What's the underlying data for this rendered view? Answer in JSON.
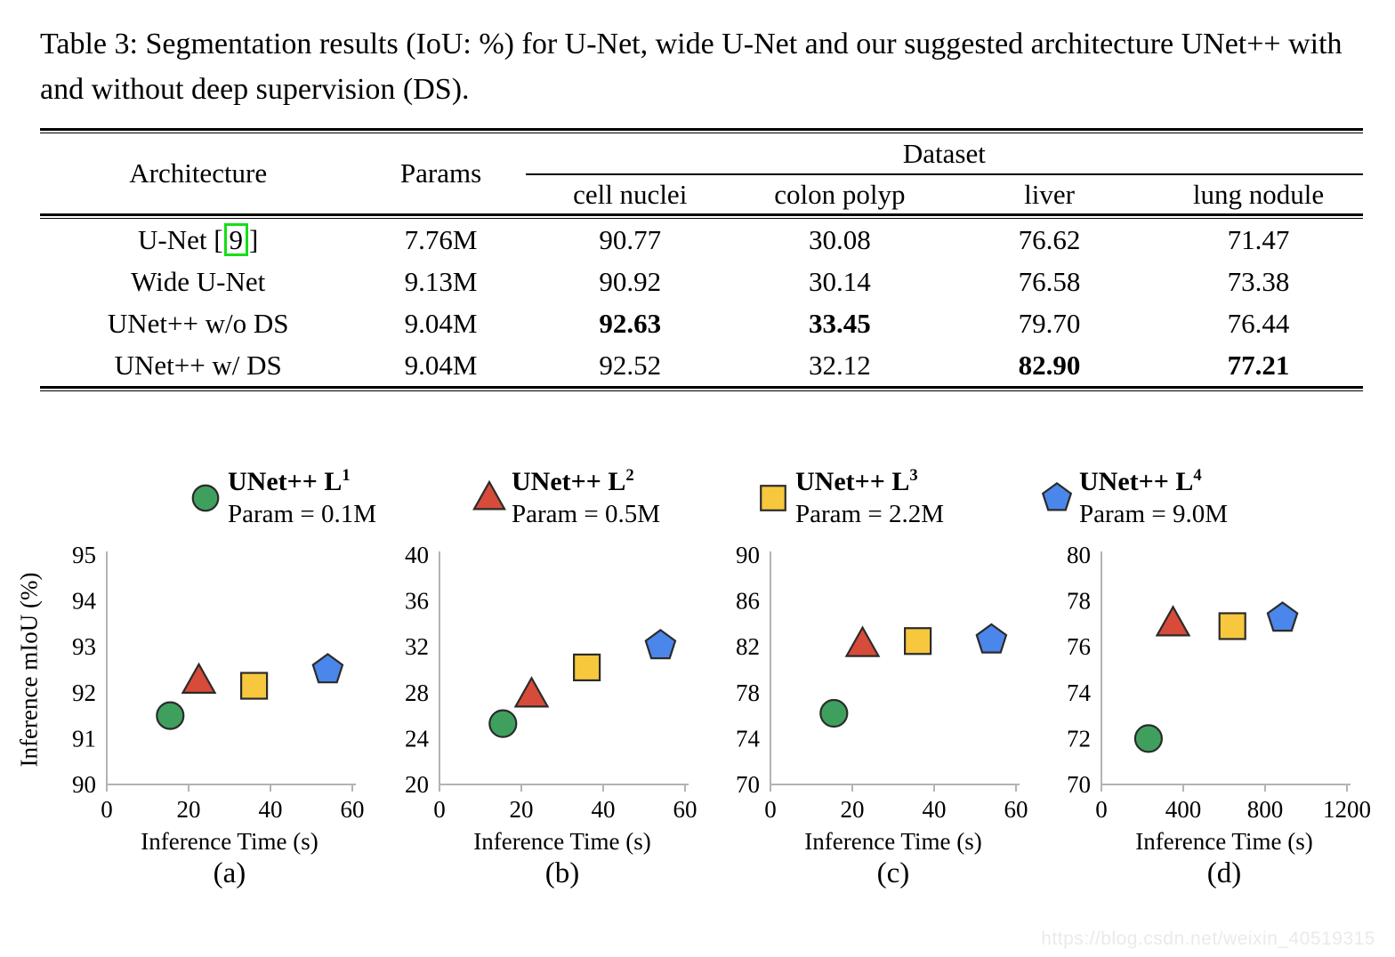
{
  "title": "Table 3: Segmentation results (IoU: %) for U-Net, wide U-Net and our suggested architecture UNet++ with and without deep supervision (DS).",
  "table": {
    "headers": {
      "architecture": "Architecture",
      "params": "Params",
      "dataset_group": "Dataset",
      "datasets": [
        "cell nuclei",
        "colon polyp",
        "liver",
        "lung nodule"
      ]
    },
    "rows": [
      {
        "arch_pre": "U-Net [",
        "cite": "9",
        "arch_post": "]",
        "params": "7.76M",
        "values": [
          "90.77",
          "30.08",
          "76.62",
          "71.47"
        ],
        "bold": [
          false,
          false,
          false,
          false
        ]
      },
      {
        "arch_pre": "Wide U-Net",
        "cite": "",
        "arch_post": "",
        "params": "9.13M",
        "values": [
          "90.92",
          "30.14",
          "76.58",
          "73.38"
        ],
        "bold": [
          false,
          false,
          false,
          false
        ]
      },
      {
        "arch_pre": "UNet++ w/o DS",
        "cite": "",
        "arch_post": "",
        "params": "9.04M",
        "values": [
          "92.63",
          "33.45",
          "79.70",
          "76.44"
        ],
        "bold": [
          true,
          true,
          false,
          false
        ]
      },
      {
        "arch_pre": "UNet++ w/ DS",
        "cite": "",
        "arch_post": "",
        "params": "9.04M",
        "values": [
          "92.52",
          "32.12",
          "82.90",
          "77.21"
        ],
        "bold": [
          false,
          false,
          true,
          true
        ]
      }
    ]
  },
  "legend": {
    "items": [
      {
        "name": "UNet++ L",
        "sup": "1",
        "param": "Param = 0.1M",
        "marker": "circle",
        "color": "#3FA05E"
      },
      {
        "name": "UNet++ L",
        "sup": "2",
        "param": "Param = 0.5M",
        "marker": "triangle",
        "color": "#D74B3A"
      },
      {
        "name": "UNet++ L",
        "sup": "3",
        "param": "Param = 2.2M",
        "marker": "square",
        "color": "#F7C83E"
      },
      {
        "name": "UNet++ L",
        "sup": "4",
        "param": "Param = 9.0M",
        "marker": "pentagon",
        "color": "#4B86EA"
      }
    ]
  },
  "chart_data": [
    {
      "type": "scatter",
      "caption": "(a)",
      "xlabel": "Inference Time (s)",
      "ylabel": "Inference mIoU (%)",
      "xlim": [
        0,
        60
      ],
      "xticks": [
        0,
        20,
        40,
        60
      ],
      "ylim": [
        90,
        95
      ],
      "yticks": [
        90,
        91,
        92,
        93,
        94,
        95
      ],
      "grid": false,
      "legend_position": "top",
      "series": [
        {
          "name": "UNet++ L1",
          "marker": "circle",
          "color": "#3FA05E",
          "x": 15.5,
          "y": 91.5
        },
        {
          "name": "UNet++ L2",
          "marker": "triangle",
          "color": "#D74B3A",
          "x": 22.5,
          "y": 92.25
        },
        {
          "name": "UNet++ L3",
          "marker": "square",
          "color": "#F7C83E",
          "x": 36,
          "y": 92.15
        },
        {
          "name": "UNet++ L4",
          "marker": "pentagon",
          "color": "#4B86EA",
          "x": 54,
          "y": 92.5
        }
      ]
    },
    {
      "type": "scatter",
      "caption": "(b)",
      "xlabel": "Inference Time (s)",
      "ylabel": "",
      "xlim": [
        0,
        60
      ],
      "xticks": [
        0,
        20,
        40,
        60
      ],
      "ylim": [
        20,
        40
      ],
      "yticks": [
        20,
        24,
        28,
        32,
        36,
        40
      ],
      "grid": false,
      "legend_position": "top",
      "series": [
        {
          "name": "UNet++ L1",
          "marker": "circle",
          "color": "#3FA05E",
          "x": 15.5,
          "y": 25.3
        },
        {
          "name": "UNet++ L2",
          "marker": "triangle",
          "color": "#D74B3A",
          "x": 22.5,
          "y": 27.8
        },
        {
          "name": "UNet++ L3",
          "marker": "square",
          "color": "#F7C83E",
          "x": 36,
          "y": 30.2
        },
        {
          "name": "UNet++ L4",
          "marker": "pentagon",
          "color": "#4B86EA",
          "x": 54,
          "y": 32.1
        }
      ]
    },
    {
      "type": "scatter",
      "caption": "(c)",
      "xlabel": "Inference Time (s)",
      "ylabel": "",
      "xlim": [
        0,
        60
      ],
      "xticks": [
        0,
        20,
        40,
        60
      ],
      "ylim": [
        70,
        90
      ],
      "yticks": [
        70,
        74,
        78,
        82,
        86,
        90
      ],
      "grid": false,
      "legend_position": "top",
      "series": [
        {
          "name": "UNet++ L1",
          "marker": "circle",
          "color": "#3FA05E",
          "x": 15.5,
          "y": 76.2
        },
        {
          "name": "UNet++ L2",
          "marker": "triangle",
          "color": "#D74B3A",
          "x": 22.5,
          "y": 82.2
        },
        {
          "name": "UNet++ L3",
          "marker": "square",
          "color": "#F7C83E",
          "x": 36,
          "y": 82.5
        },
        {
          "name": "UNet++ L4",
          "marker": "pentagon",
          "color": "#4B86EA",
          "x": 54,
          "y": 82.6
        }
      ]
    },
    {
      "type": "scatter",
      "caption": "(d)",
      "xlabel": "Inference Time (s)",
      "ylabel": "",
      "xlim": [
        0,
        1200
      ],
      "xticks": [
        0,
        400,
        800,
        1200
      ],
      "ylim": [
        70,
        80
      ],
      "yticks": [
        70,
        72,
        74,
        76,
        78,
        80
      ],
      "grid": false,
      "legend_position": "top",
      "series": [
        {
          "name": "UNet++ L1",
          "marker": "circle",
          "color": "#3FA05E",
          "x": 230,
          "y": 72
        },
        {
          "name": "UNet++ L2",
          "marker": "triangle",
          "color": "#D74B3A",
          "x": 350,
          "y": 77
        },
        {
          "name": "UNet++ L3",
          "marker": "square",
          "color": "#F7C83E",
          "x": 640,
          "y": 76.9
        },
        {
          "name": "UNet++ L4",
          "marker": "pentagon",
          "color": "#4B86EA",
          "x": 885,
          "y": 77.25
        }
      ]
    }
  ],
  "watermark": "https://blog.csdn.net/weixin_40519315"
}
